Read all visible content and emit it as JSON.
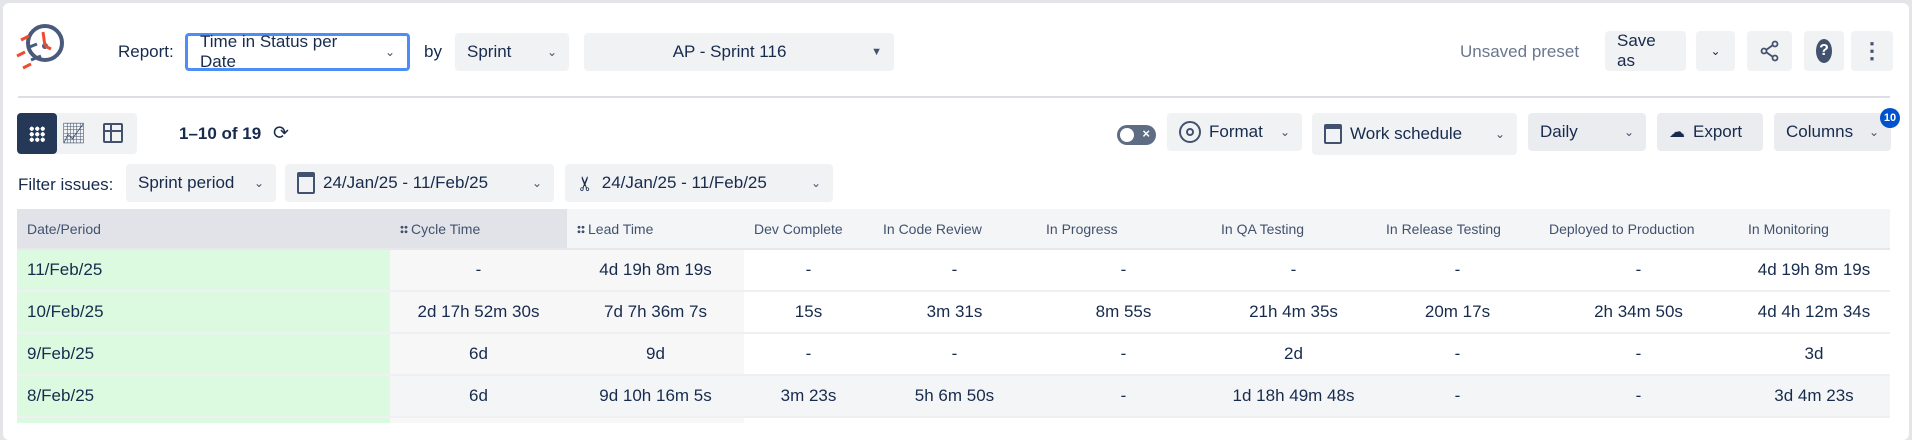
{
  "header": {
    "report_label": "Report:",
    "report_value": "Time in Status per Date",
    "by_label": "by",
    "group_value": "Sprint",
    "sprint_value": "AP - Sprint 116",
    "preset_status": "Unsaved preset",
    "save_as": "Save as"
  },
  "toolbar": {
    "pagination": "1–10 of 19",
    "format": "Format",
    "work_schedule": "Work schedule",
    "interval": "Daily",
    "export": "Export",
    "columns": "Columns",
    "columns_badge": "10"
  },
  "filters": {
    "label": "Filter issues:",
    "mode": "Sprint period",
    "date_range": "24/Jan/25 - 11/Feb/25",
    "sprint_range": "24/Jan/25 - 11/Feb/25"
  },
  "colors": {
    "accent": "#4c8df6",
    "dark": "#253858",
    "badge": "#0052cc",
    "date_col": "#dcfadf",
    "logo_red": "#ef4c2f"
  },
  "table": {
    "headers": [
      "Date/Period",
      "Cycle Time",
      "Lead Time",
      "Dev Complete",
      "In Code Review",
      "In Progress",
      "In QA Testing",
      "In Release Testing",
      "Deployed to Production",
      "In Monitoring"
    ],
    "rows": [
      [
        "11/Feb/25",
        "-",
        "4d 19h 8m 19s",
        "-",
        "-",
        "-",
        "-",
        "-",
        "-",
        "4d 19h 8m 19s"
      ],
      [
        "10/Feb/25",
        "2d 17h 52m 30s",
        "7d 7h 36m 7s",
        "15s",
        "3m 31s",
        "8m 55s",
        "21h 4m 35s",
        "20m 17s",
        "2h 34m 50s",
        "4d 4h 12m 34s"
      ],
      [
        "9/Feb/25",
        "6d",
        "9d",
        "-",
        "-",
        "-",
        "2d",
        "-",
        "-",
        "3d"
      ],
      [
        "8/Feb/25",
        "6d",
        "9d 10h 16m 5s",
        "3m 23s",
        "5h 6m 50s",
        "-",
        "1d 18h 49m 48s",
        "-",
        "-",
        "3d 4m 23s"
      ],
      [
        "",
        "",
        "",
        "",
        "",
        "",
        "",
        "",
        "",
        ""
      ]
    ]
  }
}
